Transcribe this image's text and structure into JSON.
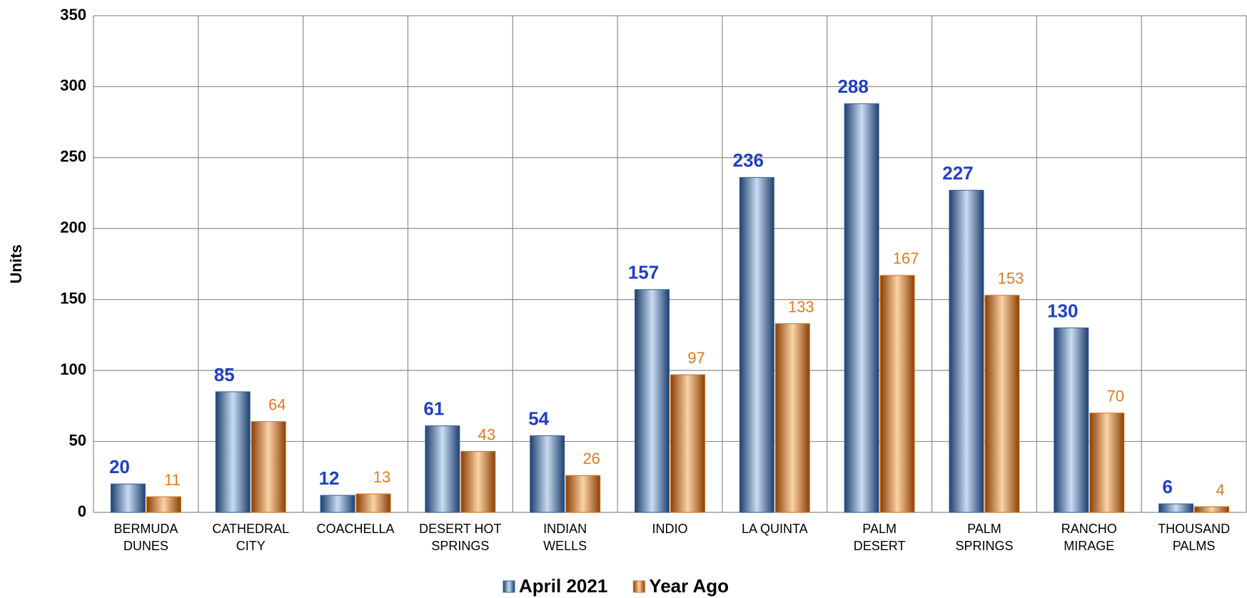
{
  "chart_data": {
    "type": "bar",
    "y_label": "Units",
    "categories": [
      "BERMUDA\nDUNES",
      "CATHEDRAL\nCITY",
      "COACHELLA",
      "DESERT HOT\nSPRINGS",
      "INDIAN\nWELLS",
      "INDIO",
      "LA QUINTA",
      "PALM\nDESERT",
      "PALM\nSPRINGS",
      "RANCHO\nMIRAGE",
      "THOUSAND\nPALMS"
    ],
    "series": [
      {
        "name": "April 2021",
        "color": "#2f5f9e",
        "label_color": "#1f3fc4",
        "values": [
          20,
          85,
          12,
          61,
          54,
          157,
          236,
          288,
          227,
          130,
          6
        ]
      },
      {
        "name": "Year Ago",
        "color": "#d9731a",
        "label_color": "#e07b20",
        "values": [
          11,
          64,
          13,
          43,
          26,
          97,
          133,
          167,
          153,
          70,
          4
        ]
      }
    ],
    "ylim": [
      0,
      350
    ],
    "yticks": [
      0,
      50,
      100,
      150,
      200,
      250,
      300,
      350
    ],
    "grid": true,
    "legend": "bottom"
  }
}
